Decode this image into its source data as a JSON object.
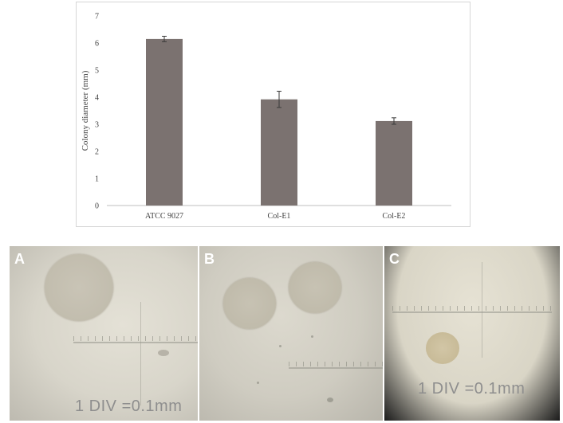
{
  "chart_data": {
    "type": "bar",
    "categories": [
      "ATCC 9027",
      "Col-E1",
      "Col-E2"
    ],
    "values": [
      6.15,
      3.92,
      3.12
    ],
    "errors": [
      0.1,
      0.3,
      0.12
    ],
    "ylabel": "Colony diameter (mm)",
    "xlabel": "",
    "ylim": [
      0,
      7
    ],
    "yticks": [
      "0",
      "1",
      "2",
      "3",
      "4",
      "5",
      "6",
      "7"
    ],
    "bar_color": "#7b7270",
    "grid": false
  },
  "panels": [
    {
      "letter": "A",
      "scale_label": "1  DIV  =0.1mm"
    },
    {
      "letter": "B",
      "scale_label": ""
    },
    {
      "letter": "C",
      "scale_label": "1  DIV  =0.1mm"
    }
  ]
}
